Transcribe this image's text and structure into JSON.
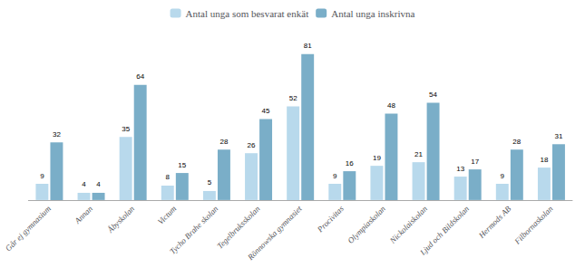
{
  "chart_data": {
    "type": "bar",
    "categories": [
      "Går ej gymnasium",
      "Annan",
      "Åbyskolan",
      "Victum",
      "Tycho Brahe skolan",
      "Tegelbruksskolan",
      "Rönnowska gymnasiet",
      "Procivitas",
      "Olympiaskolan",
      "Nickolaiskolan",
      "Ljud och Bildskolan",
      "Hermods AB",
      "Filbornaskolan"
    ],
    "series": [
      {
        "name": "Antal unga som besvarat enkät",
        "color": "#b8d9ec",
        "values": [
          9,
          4,
          35,
          8,
          5,
          26,
          52,
          9,
          19,
          21,
          13,
          9,
          18
        ]
      },
      {
        "name": "Antal unga inskrivna",
        "color": "#7aaec8",
        "values": [
          32,
          4,
          64,
          15,
          28,
          45,
          81,
          16,
          48,
          54,
          17,
          28,
          31
        ]
      }
    ],
    "ylim": [
      0,
      92
    ],
    "data_labels": true,
    "tick_labels": "x",
    "grid": false,
    "legend": "top"
  }
}
